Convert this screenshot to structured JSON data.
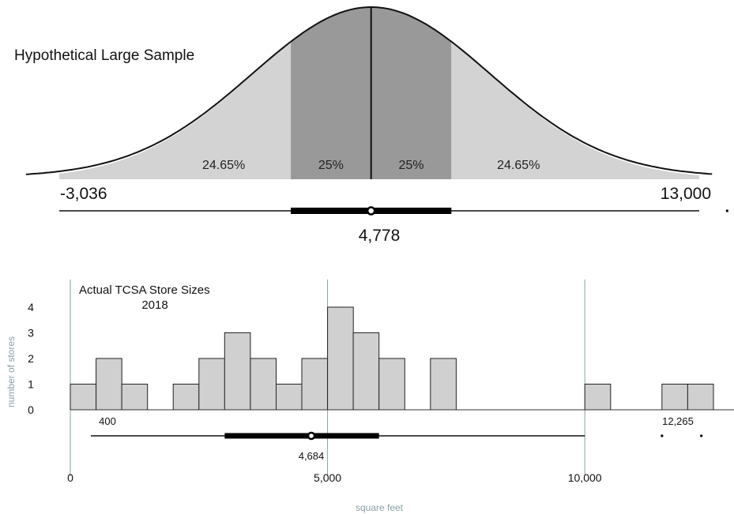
{
  "chart_data": [
    {
      "type": "area",
      "title": "Hypothetical Large Sample",
      "segments": [
        {
          "from": -3036,
          "to": 2766,
          "label": "24.65%",
          "shade": "light"
        },
        {
          "from": 2766,
          "to": 4778,
          "label": "25%",
          "shade": "dark"
        },
        {
          "from": 4778,
          "to": 6790,
          "label": "25%",
          "shade": "dark"
        },
        {
          "from": 6790,
          "to": 13000,
          "label": "24.65%",
          "shade": "light"
        }
      ],
      "boxplot": {
        "whisker_low": -3036,
        "q1": 2766,
        "median": 4778,
        "q3": 6790,
        "whisker_high": 13000,
        "outliers": [
          13700
        ]
      },
      "annotations": {
        "whisker_low_label": "-3,036",
        "whisker_high_label": "13,000",
        "median_label": "4,778"
      },
      "xlim": [
        -3036,
        13000
      ],
      "colors": {
        "light": "#d3d3d3",
        "dark": "#999999",
        "curve": "#111111"
      }
    },
    {
      "type": "bar",
      "title": "Actual TCSA Store Sizes",
      "subtitle": "2018",
      "xlabel": "square feet",
      "ylabel": "number of stores",
      "bin_width": 500,
      "bins": [
        {
          "start": 0,
          "count": 1
        },
        {
          "start": 500,
          "count": 2
        },
        {
          "start": 1000,
          "count": 1
        },
        {
          "start": 2000,
          "count": 1
        },
        {
          "start": 2500,
          "count": 2
        },
        {
          "start": 3000,
          "count": 3
        },
        {
          "start": 3500,
          "count": 2
        },
        {
          "start": 4000,
          "count": 1
        },
        {
          "start": 4500,
          "count": 2
        },
        {
          "start": 5000,
          "count": 4
        },
        {
          "start": 5500,
          "count": 3
        },
        {
          "start": 6000,
          "count": 2
        },
        {
          "start": 7000,
          "count": 2
        },
        {
          "start": 10000,
          "count": 1
        },
        {
          "start": 11500,
          "count": 1
        },
        {
          "start": 12000,
          "count": 1
        }
      ],
      "y_ticks": [
        "0",
        "1",
        "2",
        "3",
        "4"
      ],
      "x_ticks": [
        {
          "value": 0,
          "label": "0"
        },
        {
          "value": 5000,
          "label": "5,000"
        },
        {
          "value": 10000,
          "label": "10,000"
        }
      ],
      "xlim": [
        0,
        12900
      ],
      "ylim": [
        0,
        4
      ],
      "boxplot": {
        "whisker_low": 400,
        "q1": 3000,
        "median": 4684,
        "q3": 6000,
        "whisker_high": 10000,
        "outliers": [
          11500,
          12265
        ]
      },
      "annotations": {
        "whisker_low_label": "400",
        "median_label": "4,684",
        "outlier_label": "12,265"
      },
      "colors": {
        "bar": "#d0d0d0",
        "grid": "#8aa0a6"
      }
    }
  ]
}
